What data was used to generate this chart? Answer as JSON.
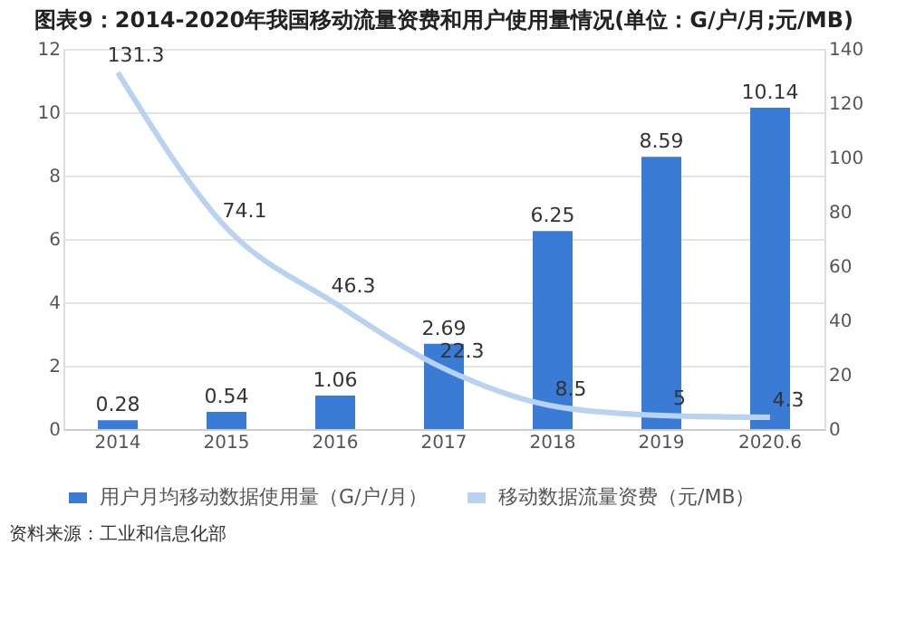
{
  "chart_data": {
    "type": "bar",
    "title": "图表9：2014-2020年我国移动流量资费和用户使用量情况(单位：G/户/月;元/MB)",
    "categories": [
      "2014",
      "2015",
      "2016",
      "2017",
      "2018",
      "2019",
      "2020.6"
    ],
    "series": [
      {
        "name": "用户月均移动数据使用量（G/户/月）",
        "color": "#3a7bd5",
        "values": [
          0.28,
          0.54,
          1.06,
          2.69,
          6.25,
          8.59,
          10.14
        ]
      },
      {
        "name": "移动数据流量资费（元/MB）",
        "color": "#b8d2f0",
        "type": "line",
        "axis": "y2",
        "values": [
          131.3,
          74.1,
          46.3,
          22.3,
          8.5,
          5,
          4.3
        ]
      }
    ],
    "ylim": [
      0,
      12
    ],
    "yticks": [
      0,
      2,
      4,
      6,
      8,
      10,
      12
    ],
    "y2lim": [
      0,
      140
    ],
    "y2ticks": [
      0,
      20,
      40,
      60,
      80,
      100,
      120,
      140
    ],
    "grid": "y",
    "legend": "bottom",
    "data_labels": true,
    "marker": "none",
    "line_style": "solid",
    "annotations": [
      "资料来源：工业和信息化部"
    ]
  }
}
